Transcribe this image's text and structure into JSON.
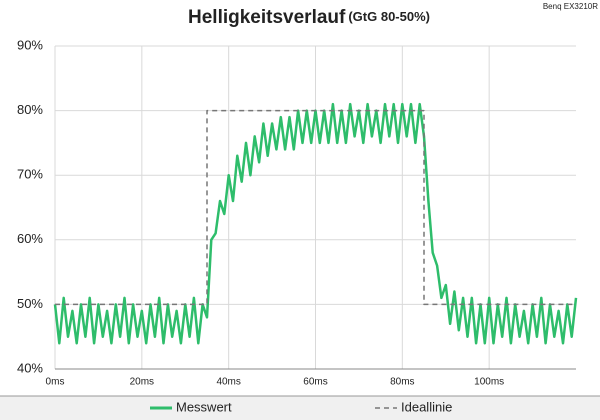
{
  "chart_data": {
    "type": "line",
    "title": "Helligkeitsverlauf",
    "subtitle": "(GtG 80-50%)",
    "watermark": "Benq EX3210R",
    "xlim": [
      0,
      120
    ],
    "xticks": [
      {
        "value": 0,
        "label": "0ms"
      },
      {
        "value": 20,
        "label": "20ms"
      },
      {
        "value": 40,
        "label": "40ms"
      },
      {
        "value": 60,
        "label": "60ms"
      },
      {
        "value": 80,
        "label": "80ms"
      },
      {
        "value": 100,
        "label": "100ms"
      }
    ],
    "ylim": [
      40,
      90
    ],
    "yticks": [
      {
        "value": 40,
        "label": "40%"
      },
      {
        "value": 50,
        "label": "50%"
      },
      {
        "value": 60,
        "label": "60%"
      },
      {
        "value": 70,
        "label": "70%"
      },
      {
        "value": 80,
        "label": "80%"
      },
      {
        "value": 90,
        "label": "90%"
      }
    ],
    "grid": true,
    "legend": "bottom",
    "series": [
      {
        "name": "Messwert",
        "color": "#2ebd6b",
        "dash": false,
        "x": [
          0,
          1,
          2,
          3,
          4,
          5,
          6,
          7,
          8,
          9,
          10,
          11,
          12,
          13,
          14,
          15,
          16,
          17,
          18,
          19,
          20,
          21,
          22,
          23,
          24,
          25,
          26,
          27,
          28,
          29,
          30,
          31,
          32,
          33,
          34,
          35,
          36,
          37,
          38,
          39,
          40,
          41,
          42,
          43,
          44,
          45,
          46,
          47,
          48,
          49,
          50,
          51,
          52,
          53,
          54,
          55,
          56,
          57,
          58,
          59,
          60,
          61,
          62,
          63,
          64,
          65,
          66,
          67,
          68,
          69,
          70,
          71,
          72,
          73,
          74,
          75,
          76,
          77,
          78,
          79,
          80,
          81,
          82,
          83,
          84,
          85,
          86,
          87,
          88,
          89,
          90,
          91,
          92,
          93,
          94,
          95,
          96,
          97,
          98,
          99,
          100,
          101,
          102,
          103,
          104,
          105,
          106,
          107,
          108,
          109,
          110,
          111,
          112,
          113,
          114,
          115,
          116,
          117,
          118,
          119,
          120
        ],
        "values": [
          50,
          44,
          51,
          45,
          49,
          44,
          50,
          45,
          51,
          44,
          50,
          45,
          49,
          44,
          50,
          45,
          51,
          44,
          50,
          45,
          49,
          44,
          50,
          45,
          51,
          44,
          50,
          45,
          49,
          44,
          50,
          45,
          51,
          44,
          50,
          48,
          60,
          61,
          66,
          64,
          70,
          66,
          73,
          69,
          75,
          70,
          76,
          72,
          78,
          73,
          78,
          74,
          79,
          74,
          79,
          74,
          80,
          75,
          80,
          75,
          80,
          75,
          80,
          75,
          81,
          75,
          80,
          75,
          81,
          76,
          80,
          75,
          81,
          76,
          80,
          75,
          81,
          76,
          81,
          75,
          81,
          76,
          81,
          75,
          81,
          76,
          66,
          58,
          56,
          51,
          53,
          47,
          52,
          46,
          51,
          45,
          51,
          44,
          50,
          44,
          51,
          44,
          50,
          45,
          51,
          44,
          50,
          45,
          49,
          44,
          50,
          45,
          51,
          44,
          50,
          45,
          49,
          44,
          50,
          45,
          51
        ]
      },
      {
        "name": "Ideallinie",
        "color": "#777777",
        "dash": true,
        "x": [
          0,
          35,
          35,
          85,
          85,
          120
        ],
        "values": [
          50,
          50,
          80,
          80,
          50,
          50
        ]
      }
    ]
  }
}
